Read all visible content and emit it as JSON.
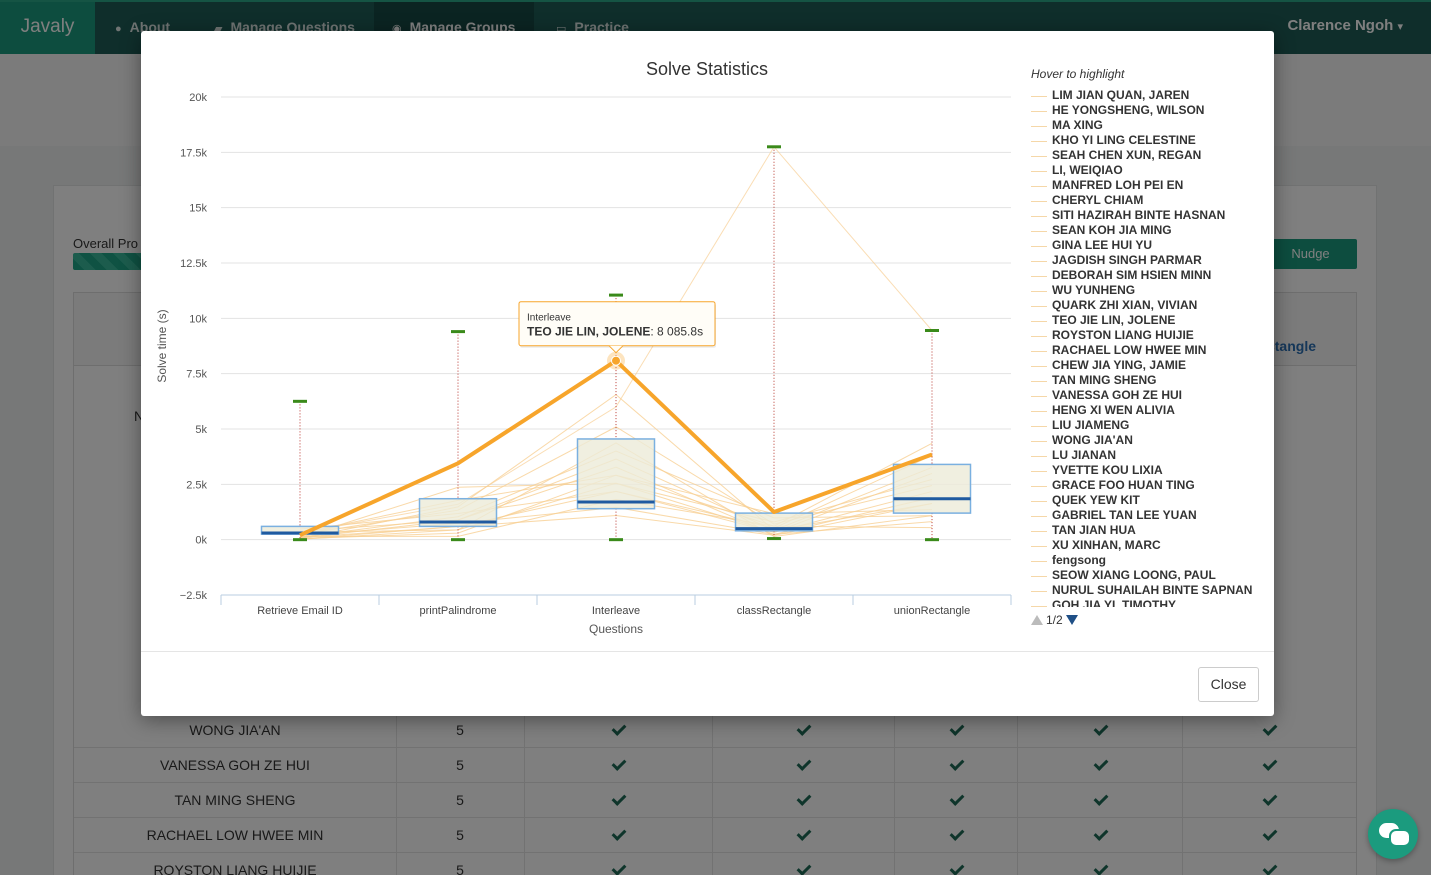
{
  "navbar": {
    "brand": "Javaly",
    "items": [
      {
        "label": "About",
        "icon": "info-circle-icon"
      },
      {
        "label": "Manage Questions",
        "icon": "book-icon"
      },
      {
        "label": "Manage Groups",
        "icon": "dashboard-icon"
      },
      {
        "label": "Practice",
        "icon": "inbox-icon"
      }
    ],
    "user": "Clarence Ngoh",
    "user_caret": "▾"
  },
  "background": {
    "overall_label": "Overall Pro",
    "nudge_label": "Nudge",
    "header_partial": "ctangle",
    "row_partial_label": "N",
    "rows": [
      {
        "name": "WONG JIA'AN",
        "count": "5"
      },
      {
        "name": "VANESSA GOH ZE HUI",
        "count": "5"
      },
      {
        "name": "TAN MING SHENG",
        "count": "5"
      },
      {
        "name": "RACHAEL LOW HWEE MIN",
        "count": "5"
      },
      {
        "name": "ROYSTON LIANG HUIJIE",
        "count": "5"
      }
    ]
  },
  "modal": {
    "close_label": "Close"
  },
  "chart_data": {
    "type": "boxplot",
    "title": "Solve Statistics",
    "xlabel": "Questions",
    "ylabel": "Solve time (s)",
    "ylim": [
      -2500,
      20000
    ],
    "yticks": [
      -2500,
      0,
      2500,
      5000,
      7500,
      10000,
      12500,
      15000,
      17500,
      20000
    ],
    "ytick_labels": [
      "−2.5k",
      "0k",
      "2.5k",
      "5k",
      "7.5k",
      "10k",
      "12.5k",
      "15k",
      "17.5k",
      "20k"
    ],
    "grid": true,
    "legend_placement": "right",
    "categories": [
      "Retrieve Email ID",
      "printPalindrome",
      "Interleave",
      "classRectangle",
      "unionRectangle"
    ],
    "boxes": [
      {
        "min": 0,
        "q1": 250,
        "median": 300,
        "q3": 600,
        "max": 6250
      },
      {
        "min": 0,
        "q1": 600,
        "median": 800,
        "q3": 1850,
        "max": 9400
      },
      {
        "min": 0,
        "q1": 1400,
        "median": 1700,
        "q3": 4550,
        "max": 11050
      },
      {
        "min": 50,
        "q1": 400,
        "median": 500,
        "q3": 1200,
        "max": 17750
      },
      {
        "min": 0,
        "q1": 1200,
        "median": 1850,
        "q3": 3400,
        "max": 9450
      }
    ],
    "highlighted_series": {
      "name": "TEO JIE LIN, JOLENE",
      "values": [
        200,
        3450,
        8085.8,
        1250,
        3850
      ]
    },
    "tooltip": {
      "category": "Interleave",
      "series": "TEO JIE LIN, JOLENE",
      "value_text": "8 085.8s"
    },
    "legend_title": "Hover to highlight",
    "legend_page": "1/2",
    "series_names": [
      "LIM JIAN QUAN, JAREN",
      "HE YONGSHENG, WILSON",
      "MA XING",
      "KHO YI LING CELESTINE",
      "SEAH CHEN XUN, REGAN",
      "LI, WEIQIAO",
      "MANFRED LOH PEI EN",
      "CHERYL CHIAM",
      "SITI HAZIRAH BINTE HASNAN",
      "SEAN KOH JIA MING",
      "GINA LEE HUI YU",
      "JAGDISH SINGH PARMAR",
      "DEBORAH SIM HSIEN MINN",
      "WU YUNHENG",
      "QUARK ZHI XIAN, VIVIAN",
      "TEO JIE LIN, JOLENE",
      "ROYSTON LIANG HUIJIE",
      "RACHAEL LOW HWEE MIN",
      "CHEW JIA YING, JAMIE",
      "TAN MING SHENG",
      "VANESSA GOH ZE HUI",
      "HENG XI WEN ALIVIA",
      "LIU JIAMENG",
      "WONG JIA'AN",
      "LU JIANAN",
      "YVETTE KOU LIXIA",
      "GRACE FOO HUAN TING",
      "QUEK YEW KIT",
      "GABRIEL TAN LEE YUAN",
      "TAN JIAN HUA",
      "XU XINHAN, MARC",
      "fengsong",
      "SEOW XIANG LOONG, PAUL",
      "NURUL SUHAILAH BINTE SAPNAN",
      "GOH JIA YI, TIMOTHY"
    ],
    "colors": {
      "highlight": "#f7a52b",
      "faint": "#f8cf94",
      "box_fill": "#ecebd8",
      "box_stroke": "#7ab0e0",
      "median": "#1f5aa0",
      "whisker": "#b8372e",
      "cap": "#3a8a1a"
    }
  }
}
